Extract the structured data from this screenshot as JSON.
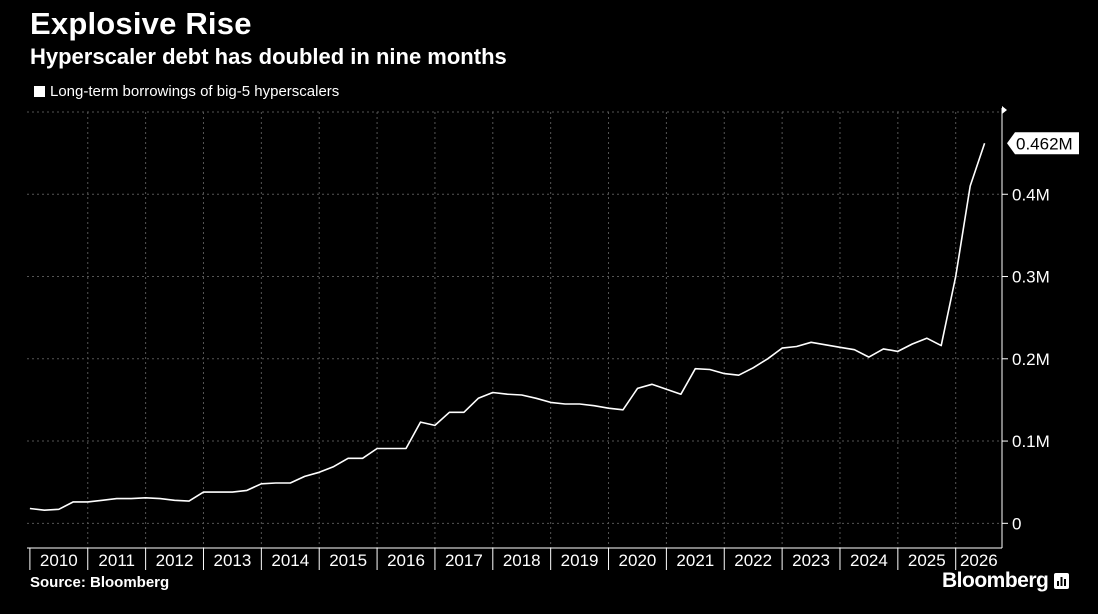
{
  "header": {
    "title": "Explosive Rise",
    "subtitle": "Hyperscaler debt has doubled in nine months"
  },
  "legend": {
    "label": "Long-term borrowings of big-5 hyperscalers"
  },
  "footer": {
    "source": "Source: Bloomberg",
    "brand": "Bloomberg"
  },
  "colors": {
    "background": "#000000",
    "line": "#ffffff",
    "grid": "#555555",
    "text": "#ffffff"
  },
  "chart_data": {
    "type": "line",
    "title": "Explosive Rise",
    "subtitle": "Hyperscaler debt has doubled in nine months",
    "xlabel": "",
    "ylabel": "",
    "xlim": [
      2009.95,
      2026.8
    ],
    "ylim": [
      -0.03,
      0.5
    ],
    "yticks": [
      {
        "value": 0,
        "label": "0"
      },
      {
        "value": 0.1,
        "label": "0.1M"
      },
      {
        "value": 0.2,
        "label": "0.2M"
      },
      {
        "value": 0.3,
        "label": "0.3M"
      },
      {
        "value": 0.4,
        "label": "0.4M"
      }
    ],
    "xticks": [
      "2010",
      "2011",
      "2012",
      "2013",
      "2014",
      "2015",
      "2016",
      "2017",
      "2018",
      "2019",
      "2020",
      "2021",
      "2022",
      "2023",
      "2024",
      "2025",
      "2026"
    ],
    "last_value_label": "0.462M",
    "grid": true,
    "legend_position": "top-left",
    "series": [
      {
        "name": "Long-term borrowings of big-5 hyperscalers",
        "x": [
          2010.0,
          2010.25,
          2010.5,
          2010.75,
          2011.0,
          2011.25,
          2011.5,
          2011.75,
          2012.0,
          2012.25,
          2012.5,
          2012.75,
          2013.0,
          2013.25,
          2013.5,
          2013.75,
          2014.0,
          2014.25,
          2014.5,
          2014.75,
          2015.0,
          2015.25,
          2015.5,
          2015.75,
          2016.0,
          2016.25,
          2016.5,
          2016.75,
          2017.0,
          2017.25,
          2017.5,
          2017.75,
          2018.0,
          2018.25,
          2018.5,
          2018.75,
          2019.0,
          2019.25,
          2019.5,
          2019.75,
          2020.0,
          2020.25,
          2020.5,
          2020.75,
          2021.0,
          2021.25,
          2021.5,
          2021.75,
          2022.0,
          2022.25,
          2022.5,
          2022.75,
          2023.0,
          2023.25,
          2023.5,
          2023.75,
          2024.0,
          2024.25,
          2024.5,
          2024.75,
          2025.0,
          2025.25,
          2025.5,
          2025.75,
          2026.0,
          2026.25,
          2026.5
        ],
        "values": [
          0.018,
          0.016,
          0.017,
          0.026,
          0.026,
          0.028,
          0.03,
          0.03,
          0.031,
          0.03,
          0.028,
          0.027,
          0.038,
          0.038,
          0.038,
          0.04,
          0.048,
          0.049,
          0.049,
          0.057,
          0.062,
          0.069,
          0.079,
          0.079,
          0.091,
          0.091,
          0.091,
          0.123,
          0.119,
          0.135,
          0.135,
          0.152,
          0.159,
          0.157,
          0.156,
          0.152,
          0.147,
          0.145,
          0.145,
          0.143,
          0.14,
          0.138,
          0.164,
          0.169,
          0.163,
          0.157,
          0.188,
          0.187,
          0.182,
          0.18,
          0.189,
          0.2,
          0.213,
          0.215,
          0.22,
          0.217,
          0.214,
          0.211,
          0.202,
          0.212,
          0.209,
          0.218,
          0.225,
          0.216,
          0.3,
          0.41,
          0.462
        ]
      }
    ]
  }
}
